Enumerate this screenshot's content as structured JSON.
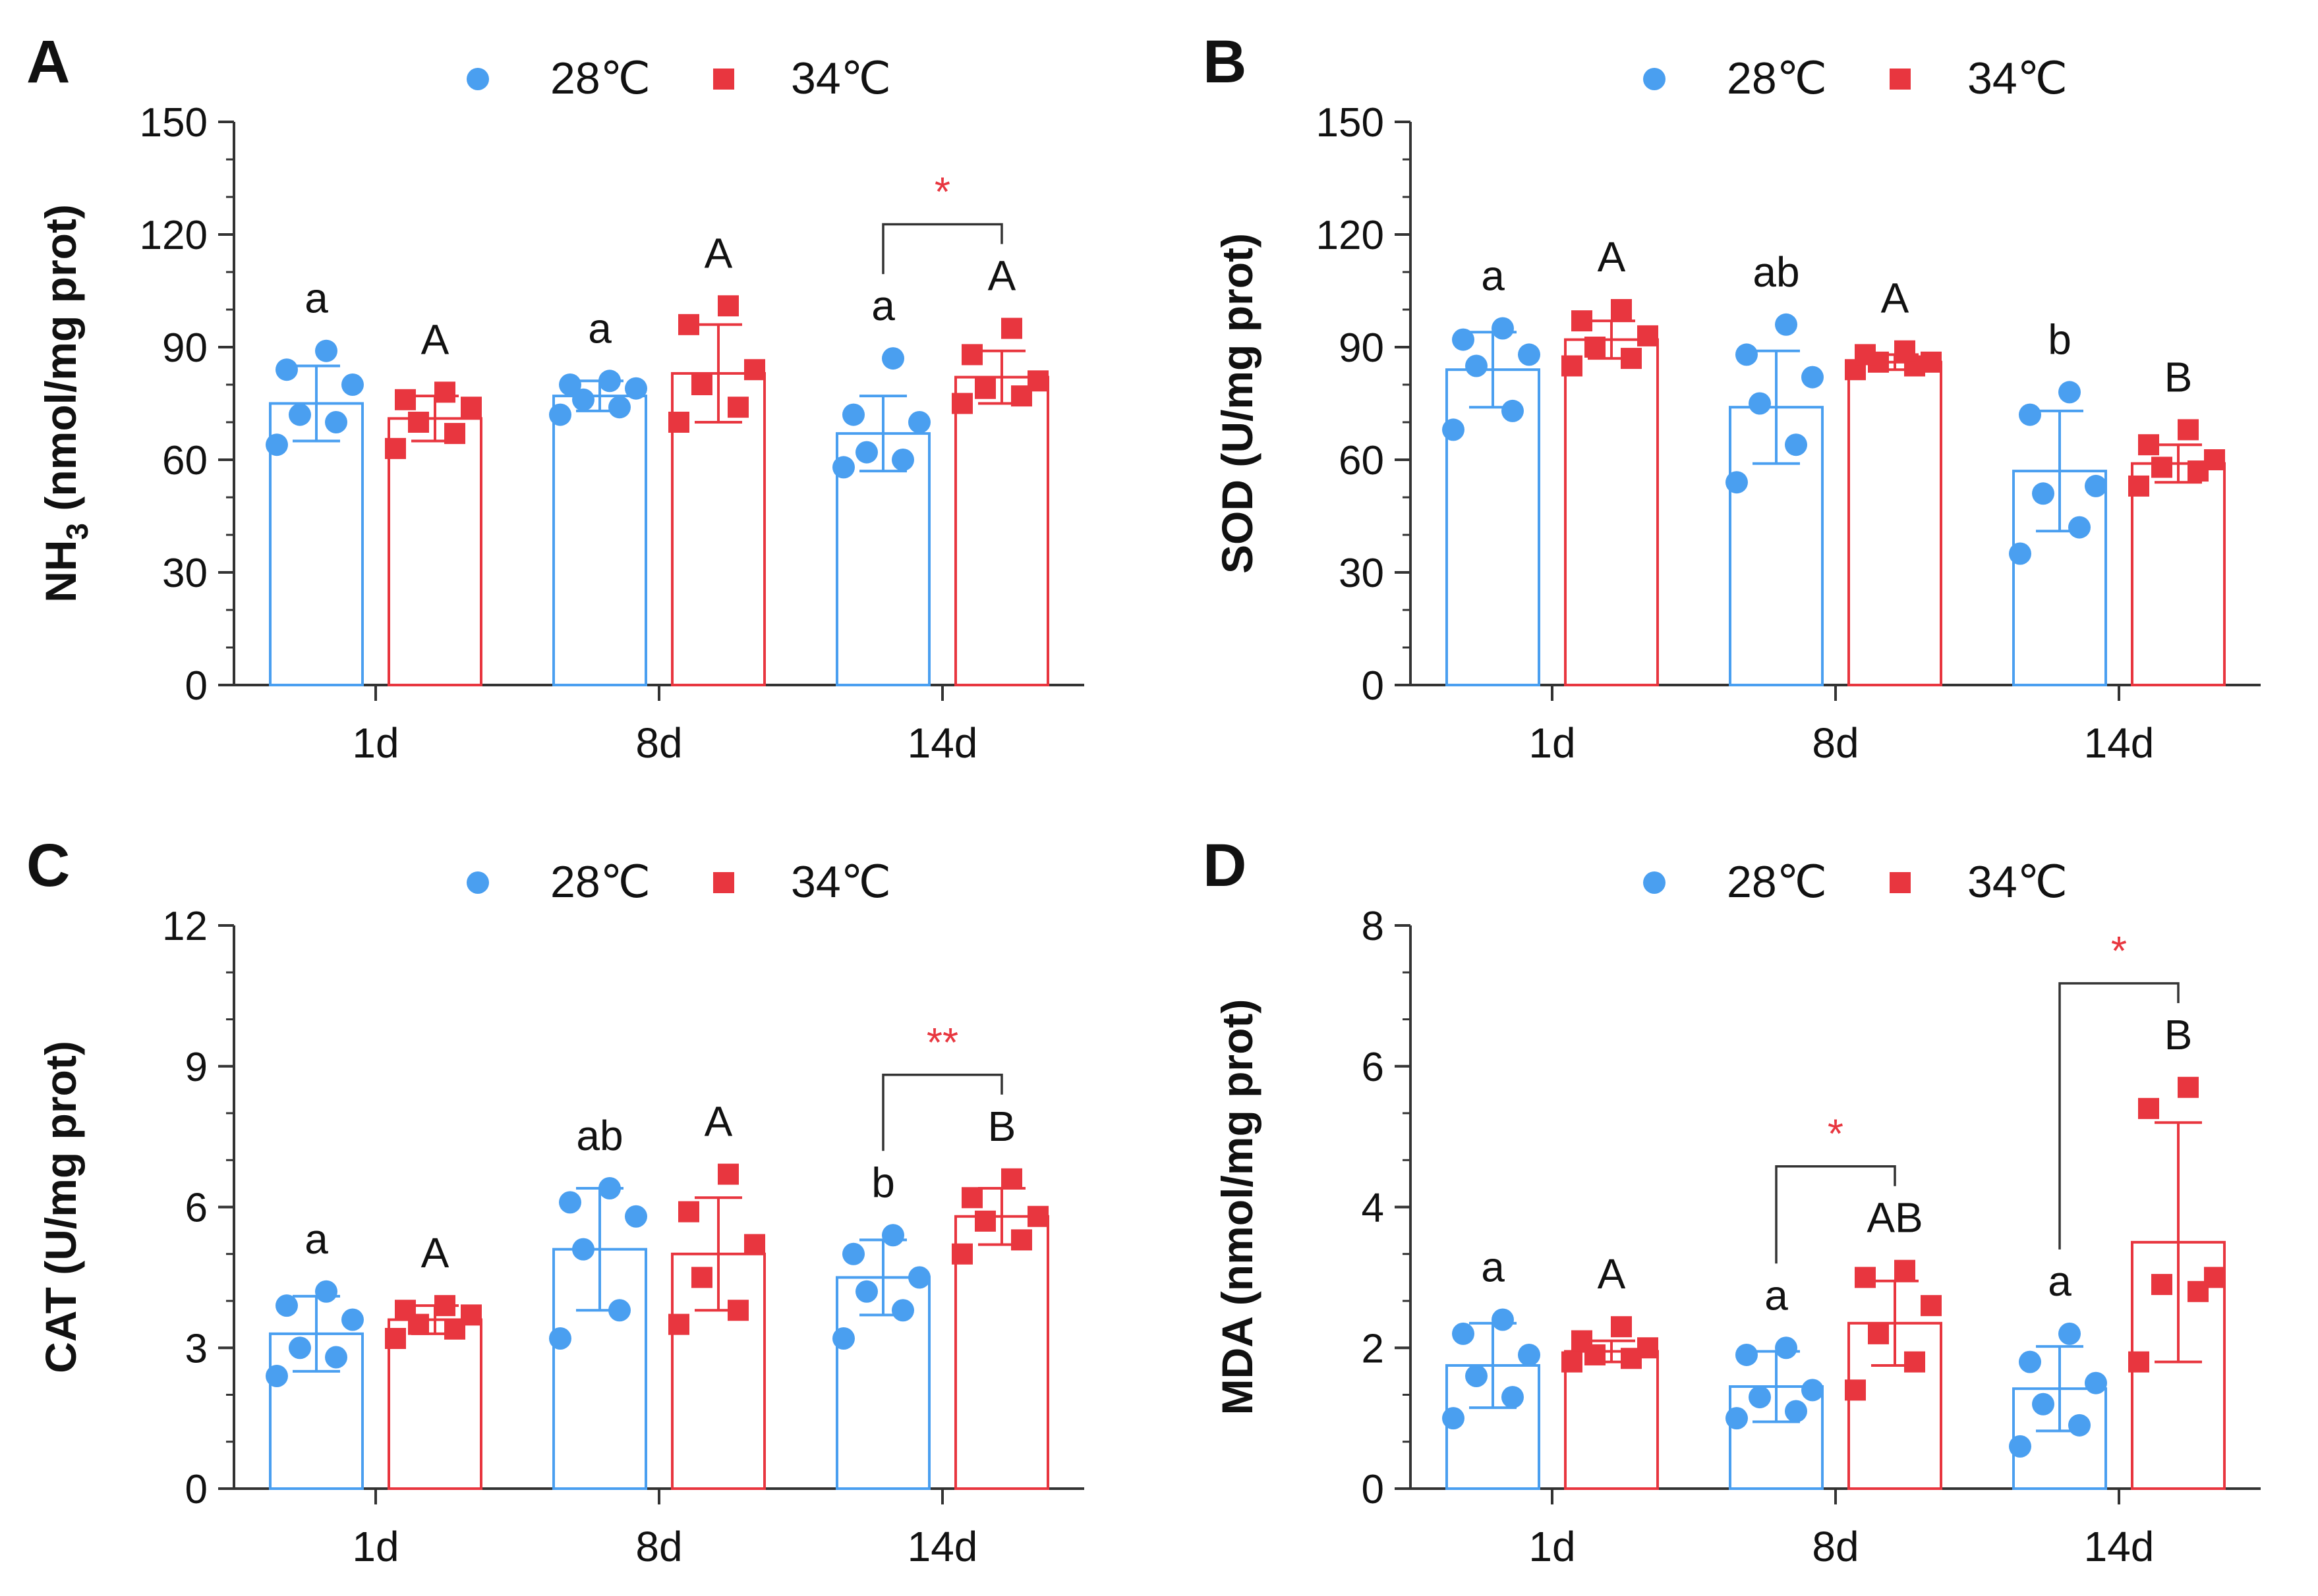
{
  "legend": {
    "series_a": "28℃",
    "series_b": "34℃",
    "color_a": "#4a9ff0",
    "color_b": "#e8363f"
  },
  "chart_data": [
    {
      "panel": "A",
      "type": "bar",
      "ylabel_main": "NH",
      "ylabel_sub": "3",
      "ylabel_rest": " (nmol/mg prot)",
      "ylim": [
        0,
        150
      ],
      "yticks": [
        0,
        30,
        60,
        90,
        120,
        150
      ],
      "categories": [
        "1d",
        "8d",
        "14d"
      ],
      "series": [
        {
          "name": "28℃",
          "values": [
            75,
            77,
            67
          ],
          "sd": [
            10,
            4,
            10
          ],
          "points": [
            [
              64,
              70,
              72,
              80,
              84,
              89
            ],
            [
              72,
              74,
              76,
              79,
              80,
              81
            ],
            [
              58,
              60,
              62,
              70,
              72,
              87
            ]
          ],
          "letters": [
            "a",
            "a",
            "a"
          ]
        },
        {
          "name": "34℃",
          "values": [
            71,
            83,
            82
          ],
          "sd": [
            6,
            13,
            7
          ],
          "points": [
            [
              63,
              67,
              70,
              74,
              76,
              78
            ],
            [
              70,
              74,
              80,
              84,
              96,
              101
            ],
            [
              75,
              77,
              79,
              81,
              88,
              95
            ]
          ],
          "letters": [
            "A",
            "A",
            "A"
          ]
        }
      ],
      "significance": [
        {
          "category": "14d",
          "label": "*"
        }
      ]
    },
    {
      "panel": "B",
      "type": "bar",
      "ylabel_main": "SOD",
      "ylabel_sub": "",
      "ylabel_rest": " (U/mg prot)",
      "ylim": [
        0,
        150
      ],
      "yticks": [
        0,
        30,
        60,
        90,
        120,
        150
      ],
      "categories": [
        "1d",
        "8d",
        "14d"
      ],
      "series": [
        {
          "name": "28℃",
          "values": [
            84,
            74,
            57
          ],
          "sd": [
            10,
            15,
            16
          ],
          "points": [
            [
              68,
              73,
              85,
              88,
              92,
              95
            ],
            [
              54,
              64,
              75,
              82,
              88,
              96
            ],
            [
              35,
              42,
              51,
              53,
              72,
              78
            ]
          ],
          "letters": [
            "a",
            "ab",
            "b"
          ]
        },
        {
          "name": "34℃",
          "values": [
            92,
            86,
            59
          ],
          "sd": [
            5,
            2,
            5
          ],
          "points": [
            [
              85,
              87,
              90,
              93,
              97,
              100
            ],
            [
              84,
              85,
              86,
              86,
              88,
              89
            ],
            [
              53,
              57,
              58,
              60,
              64,
              68
            ]
          ],
          "letters": [
            "A",
            "A",
            "B"
          ]
        }
      ],
      "significance": []
    },
    {
      "panel": "C",
      "type": "bar",
      "ylabel_main": "CAT",
      "ylabel_sub": "",
      "ylabel_rest": " (U/mg prot)",
      "ylim": [
        0,
        12
      ],
      "yticks": [
        0,
        3,
        6,
        9,
        12
      ],
      "categories": [
        "1d",
        "8d",
        "14d"
      ],
      "series": [
        {
          "name": "28℃",
          "values": [
            3.3,
            5.1,
            4.5
          ],
          "sd": [
            0.8,
            1.3,
            0.8
          ],
          "points": [
            [
              2.4,
              2.8,
              3.0,
              3.6,
              3.9,
              4.2
            ],
            [
              3.2,
              3.8,
              5.1,
              5.8,
              6.1,
              6.4
            ],
            [
              3.2,
              3.8,
              4.2,
              4.5,
              5.0,
              5.4
            ]
          ],
          "letters": [
            "a",
            "ab",
            "b"
          ]
        },
        {
          "name": "34℃",
          "values": [
            3.6,
            5.0,
            5.8
          ],
          "sd": [
            0.3,
            1.2,
            0.6
          ],
          "points": [
            [
              3.2,
              3.4,
              3.5,
              3.7,
              3.8,
              3.9
            ],
            [
              3.5,
              3.8,
              4.5,
              5.2,
              5.9,
              6.7
            ],
            [
              5.0,
              5.3,
              5.7,
              5.8,
              6.2,
              6.6
            ]
          ],
          "letters": [
            "A",
            "A",
            "B"
          ]
        }
      ],
      "significance": [
        {
          "category": "14d",
          "label": "**"
        }
      ]
    },
    {
      "panel": "D",
      "type": "bar",
      "ylabel_main": "MDA",
      "ylabel_sub": "",
      "ylabel_rest": " (nmol/mg prot)",
      "ylim": [
        0,
        8
      ],
      "yticks": [
        0,
        2,
        4,
        6,
        8
      ],
      "categories": [
        "1d",
        "8d",
        "14d"
      ],
      "series": [
        {
          "name": "28℃",
          "values": [
            1.75,
            1.45,
            1.42
          ],
          "sd": [
            0.6,
            0.5,
            0.6
          ],
          "points": [
            [
              1.0,
              1.3,
              1.6,
              1.9,
              2.2,
              2.4
            ],
            [
              1.0,
              1.1,
              1.3,
              1.4,
              1.9,
              2.0
            ],
            [
              0.6,
              0.9,
              1.2,
              1.5,
              1.8,
              2.2
            ]
          ],
          "letters": [
            "a",
            "a",
            "a"
          ]
        },
        {
          "name": "34℃",
          "values": [
            1.95,
            2.35,
            3.5
          ],
          "sd": [
            0.15,
            0.6,
            1.7
          ],
          "points": [
            [
              1.8,
              1.85,
              1.9,
              2.0,
              2.1,
              2.3
            ],
            [
              1.4,
              1.8,
              2.2,
              2.6,
              3.0,
              3.1
            ],
            [
              1.8,
              2.8,
              2.9,
              3.0,
              5.4,
              5.7
            ]
          ],
          "letters": [
            "A",
            "AB",
            "B"
          ]
        }
      ],
      "significance": [
        {
          "category": "8d",
          "label": "*"
        },
        {
          "category": "14d",
          "label": "*"
        }
      ]
    }
  ]
}
